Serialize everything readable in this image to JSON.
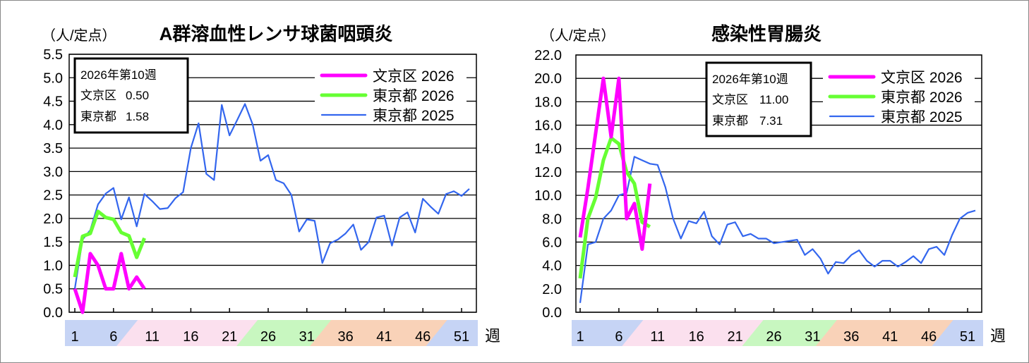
{
  "chart_data": [
    {
      "type": "line",
      "title": "A群溶血性レンサ球菌咽頭炎",
      "ylabel": "（人/定点）",
      "xlabel": "週",
      "ylim": [
        0,
        5.5
      ],
      "yticks": [
        "0.0",
        "0.5",
        "1.0",
        "1.5",
        "2.0",
        "2.5",
        "3.0",
        "3.5",
        "4.0",
        "4.5",
        "5.0",
        "5.5"
      ],
      "xticks": [
        "1",
        "6",
        "11",
        "16",
        "21",
        "26",
        "31",
        "36",
        "41",
        "46",
        "51"
      ],
      "grid": true,
      "legend_position": "top-right",
      "info_box": {
        "title": "2026年第10週",
        "rows": [
          {
            "label": "文京区",
            "value": "0.50"
          },
          {
            "label": "東京都",
            "value": "1.58"
          }
        ]
      },
      "series": [
        {
          "name": "文京区 2026",
          "color": "#ff00ff",
          "width": 5,
          "values": [
            0.5,
            0.0,
            1.25,
            1.0,
            0.5,
            0.5,
            1.25,
            0.5,
            0.75,
            0.5
          ]
        },
        {
          "name": "東京都 2026",
          "color": "#66ff33",
          "width": 5,
          "values": [
            0.75,
            1.62,
            1.68,
            2.15,
            2.02,
            1.98,
            1.7,
            1.63,
            1.17,
            1.58
          ]
        },
        {
          "name": "東京都 2025",
          "color": "#3366ee",
          "width": 2.2,
          "values": [
            0.5,
            1.55,
            1.75,
            2.3,
            2.53,
            2.65,
            1.98,
            2.45,
            1.83,
            2.52,
            2.37,
            2.2,
            2.22,
            2.43,
            2.56,
            3.5,
            4.03,
            2.95,
            2.82,
            4.42,
            3.77,
            4.1,
            4.44,
            4.0,
            3.23,
            3.35,
            2.82,
            2.75,
            2.5,
            1.72,
            1.98,
            1.95,
            1.05,
            1.47,
            1.55,
            1.68,
            1.87,
            1.33,
            1.5,
            2.02,
            2.06,
            1.42,
            2.02,
            2.13,
            1.7,
            2.42,
            2.25,
            2.1,
            2.52,
            2.58,
            2.48,
            2.63
          ]
        }
      ]
    },
    {
      "type": "line",
      "title": "感染性胃腸炎",
      "ylabel": "（人/定点）",
      "xlabel": "週",
      "ylim": [
        0,
        22
      ],
      "yticks": [
        "0.0",
        "2.0",
        "4.0",
        "6.0",
        "8.0",
        "10.0",
        "12.0",
        "14.0",
        "16.0",
        "18.0",
        "20.0",
        "22.0"
      ],
      "xticks": [
        "1",
        "6",
        "11",
        "16",
        "21",
        "26",
        "31",
        "36",
        "41",
        "46",
        "51"
      ],
      "grid": true,
      "legend_position": "top-right",
      "info_box": {
        "title": "2026年第10週",
        "rows": [
          {
            "label": "文京区",
            "value": "11.00"
          },
          {
            "label": "東京都",
            "value": "7.31"
          }
        ]
      },
      "series": [
        {
          "name": "文京区 2026",
          "color": "#ff00ff",
          "width": 5,
          "values": [
            6.4,
            10.6,
            15.3,
            20.0,
            15.0,
            20.0,
            8.0,
            9.3,
            5.4,
            11.0
          ]
        },
        {
          "name": "東京都 2026",
          "color": "#66ff33",
          "width": 5,
          "values": [
            2.9,
            8.0,
            9.8,
            13.0,
            14.9,
            14.4,
            12.0,
            11.0,
            7.7,
            7.31
          ]
        },
        {
          "name": "東京都 2025",
          "color": "#3366ee",
          "width": 2.2,
          "values": [
            0.8,
            5.8,
            6.0,
            8.0,
            8.7,
            10.0,
            10.2,
            13.3,
            13.0,
            12.7,
            12.6,
            10.7,
            8.0,
            6.3,
            7.8,
            7.6,
            8.6,
            6.5,
            5.8,
            7.5,
            7.7,
            6.5,
            6.7,
            6.3,
            6.3,
            5.9,
            6.0,
            6.1,
            6.2,
            4.9,
            5.4,
            4.6,
            3.3,
            4.3,
            4.2,
            4.9,
            5.3,
            4.4,
            3.9,
            4.4,
            4.4,
            3.9,
            4.3,
            4.8,
            4.2,
            5.4,
            5.6,
            4.9,
            6.6,
            8.0,
            8.5,
            8.7
          ]
        }
      ]
    }
  ],
  "colors": {
    "band_winter": "#c6d4f5",
    "band_spring": "#fbe0ee",
    "band_summer": "#c8f7c0",
    "band_autumn": "#f9d2b8"
  }
}
